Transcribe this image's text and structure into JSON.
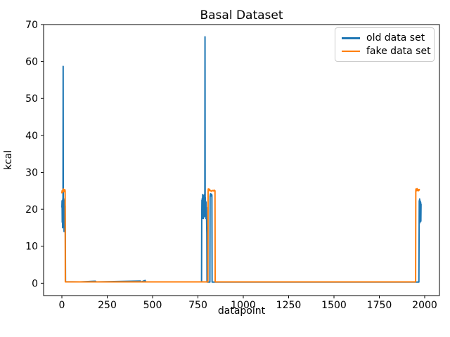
{
  "figure": {
    "background": "#ffffff"
  },
  "chart_data": {
    "type": "line",
    "title": "Basal Dataset",
    "xlabel": "datapoint",
    "ylabel": "kcal",
    "xlim": [
      -100.8,
      2081.4
    ],
    "ylim": [
      -3.35,
      70
    ],
    "x_ticks": [
      0,
      250,
      500,
      750,
      1000,
      1250,
      1500,
      1750,
      2000
    ],
    "y_ticks": [
      0,
      10,
      20,
      30,
      40,
      50,
      60,
      70
    ],
    "grid": false,
    "legend_position": "upper right",
    "series": [
      {
        "name": "old data set",
        "color": "#1f77b4",
        "points": [
          [
            0,
            20.5
          ],
          [
            1,
            22.3
          ],
          [
            2,
            16.5
          ],
          [
            3,
            21.5
          ],
          [
            4,
            15
          ],
          [
            5,
            22.8
          ],
          [
            6,
            18
          ],
          [
            7,
            58.7
          ],
          [
            8,
            19.5
          ],
          [
            9,
            23
          ],
          [
            10,
            15.5
          ],
          [
            11,
            21.8
          ],
          [
            12,
            14
          ],
          [
            13,
            19.5
          ],
          [
            14,
            22.5
          ],
          [
            15,
            15.5
          ],
          [
            16,
            20.5
          ],
          [
            17,
            16.5
          ],
          [
            18,
            21
          ],
          [
            19,
            13
          ],
          [
            20,
            0.4
          ],
          [
            100,
            0.35
          ],
          [
            185,
            0.55
          ],
          [
            190,
            0.35
          ],
          [
            433,
            0.6
          ],
          [
            437,
            0.35
          ],
          [
            459,
            0.75
          ],
          [
            463,
            0.35
          ],
          [
            770,
            0.35
          ],
          [
            771,
            18.5
          ],
          [
            772,
            22.5
          ],
          [
            773,
            17.5
          ],
          [
            774,
            23
          ],
          [
            775,
            19
          ],
          [
            776,
            24
          ],
          [
            777,
            18
          ],
          [
            778,
            21.5
          ],
          [
            779,
            23.8
          ],
          [
            780,
            17.5
          ],
          [
            781,
            22
          ],
          [
            782,
            19.5
          ],
          [
            783,
            23.5
          ],
          [
            784,
            18
          ],
          [
            785,
            21
          ],
          [
            786,
            24
          ],
          [
            787,
            19
          ],
          [
            788,
            22.5
          ],
          [
            789,
            66.7
          ],
          [
            790,
            20
          ],
          [
            791,
            23.2
          ],
          [
            792,
            18
          ],
          [
            793,
            21.5
          ],
          [
            794,
            17.5
          ],
          [
            795,
            22
          ],
          [
            796,
            18.5
          ],
          [
            797,
            20.5
          ],
          [
            798,
            16
          ],
          [
            799,
            13.5
          ],
          [
            800,
            0.3
          ],
          [
            816,
            0.3
          ],
          [
            817,
            23.5
          ],
          [
            819,
            24.2
          ],
          [
            822,
            23.6
          ],
          [
            825,
            24.1
          ],
          [
            827,
            23.8
          ],
          [
            828,
            0.3
          ],
          [
            1968,
            0.3
          ],
          [
            1970,
            22.3
          ],
          [
            1971,
            16.2
          ],
          [
            1972,
            22.8
          ],
          [
            1973,
            17.5
          ],
          [
            1974,
            21.5
          ],
          [
            1975,
            16.5
          ],
          [
            1976,
            22.2
          ],
          [
            1977,
            17.8
          ],
          [
            1978,
            21.8
          ],
          [
            1979,
            16.8
          ],
          [
            1980,
            21.3
          ],
          [
            1981,
            21.5
          ]
        ]
      },
      {
        "name": "fake data set",
        "color": "#ff7f0e",
        "points": [
          [
            0,
            24.3
          ],
          [
            1,
            25
          ],
          [
            3,
            24.6
          ],
          [
            5,
            25.2
          ],
          [
            7,
            24.8
          ],
          [
            8,
            25.5
          ],
          [
            10,
            25
          ],
          [
            11,
            25.4
          ],
          [
            13,
            24.8
          ],
          [
            15,
            25.2
          ],
          [
            16,
            24.7
          ],
          [
            17,
            25.3
          ],
          [
            18,
            24.9
          ],
          [
            19,
            0.35
          ],
          [
            805,
            0.35
          ],
          [
            806,
            24.8
          ],
          [
            807,
            25.5
          ],
          [
            808,
            25.1
          ],
          [
            810,
            25.5
          ],
          [
            812,
            25.2
          ],
          [
            814,
            25.4
          ],
          [
            816,
            25
          ],
          [
            820,
            25.1
          ],
          [
            824,
            24.9
          ],
          [
            828,
            25
          ],
          [
            832,
            25.1
          ],
          [
            836,
            25
          ],
          [
            840,
            25.2
          ],
          [
            843,
            24.9
          ],
          [
            844,
            25
          ],
          [
            845,
            0.35
          ],
          [
            1950,
            0.35
          ],
          [
            1951,
            25.1
          ],
          [
            1952,
            25.5
          ],
          [
            1954,
            25
          ],
          [
            1956,
            25.4
          ],
          [
            1958,
            25.6
          ],
          [
            1960,
            25.1
          ],
          [
            1962,
            25.4
          ],
          [
            1964,
            25
          ],
          [
            1966,
            25.3
          ],
          [
            1968,
            25.1
          ],
          [
            1970,
            25.35
          ],
          [
            1972,
            25.2
          ]
        ]
      }
    ]
  },
  "legend": {
    "items": [
      "old data set",
      "fake data set"
    ]
  }
}
